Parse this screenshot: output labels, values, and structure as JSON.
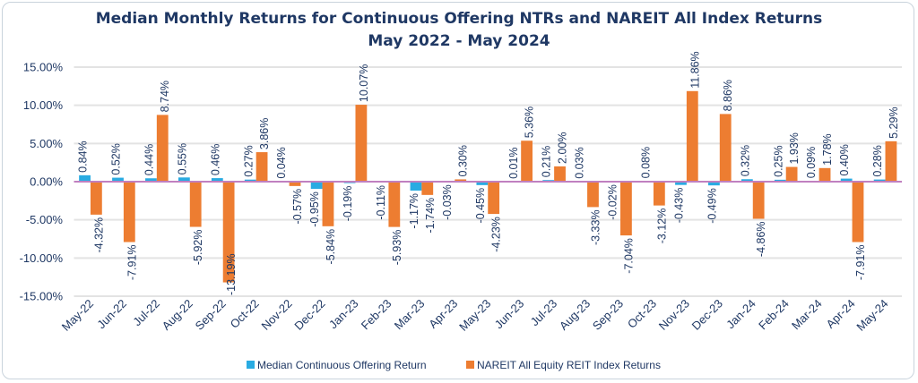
{
  "chart_data": {
    "type": "bar",
    "title": "Median Monthly Returns for Continuous Offering NTRs and NAREIT All Index Returns",
    "subtitle": "May 2022 - May 2024",
    "xlabel": "",
    "ylabel": "",
    "ylim": [
      -15,
      15
    ],
    "yticks": [
      "15.00%",
      "10.00%",
      "5.00%",
      "0.00%",
      "-5.00%",
      "-10.00%",
      "-15.00%"
    ],
    "grid": true,
    "legend_position": "bottom",
    "categories": [
      "May-22",
      "Jun-22",
      "Jul-22",
      "Aug-22",
      "Sep-22",
      "Oct-22",
      "Nov-22",
      "Dec-22",
      "Jan-23",
      "Feb-23",
      "Mar-23",
      "Apr-23",
      "May-23",
      "Jun-23",
      "Jul-23",
      "Aug-23",
      "Sep-23",
      "Oct-23",
      "Nov-23",
      "Dec-23",
      "Jan-24",
      "Feb-24",
      "Mar-24",
      "Apr-24",
      "May-24"
    ],
    "series": [
      {
        "name": "Median Continuous Offering Return",
        "color": "#29abe2",
        "values": [
          0.84,
          0.52,
          0.44,
          0.55,
          0.46,
          0.27,
          0.04,
          -0.95,
          -0.19,
          -0.11,
          -1.17,
          -0.03,
          -0.45,
          0.01,
          0.21,
          0.03,
          -0.02,
          0.08,
          -0.43,
          -0.49,
          0.32,
          0.25,
          0.09,
          0.4,
          0.28
        ]
      },
      {
        "name": "NAREIT All Equity REIT Index Returns",
        "color": "#ed7d31",
        "values": [
          -4.32,
          -7.91,
          8.74,
          -5.92,
          -13.19,
          3.86,
          -0.57,
          -5.84,
          10.07,
          -5.93,
          -1.74,
          0.3,
          -4.23,
          5.36,
          2.0,
          -3.33,
          -7.04,
          -3.12,
          11.86,
          8.86,
          -4.86,
          1.93,
          1.78,
          -7.91,
          5.29
        ]
      }
    ],
    "zero_line_color": "#c080c0"
  }
}
